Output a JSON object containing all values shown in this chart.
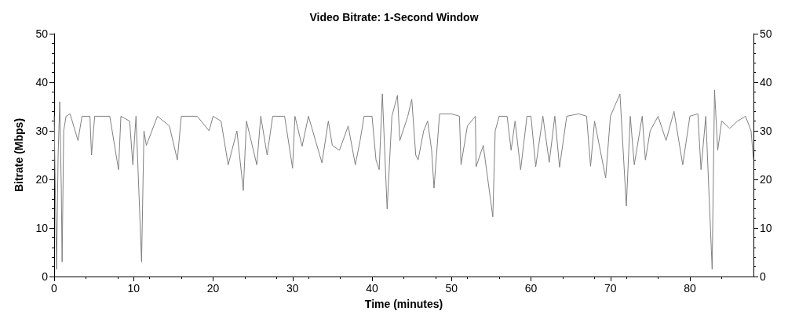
{
  "chart_data": {
    "type": "line",
    "title": "Video Bitrate: 1-Second Window",
    "xlabel": "Time (minutes)",
    "ylabel": "Bitrate (Mbps)",
    "xlim": [
      0,
      88
    ],
    "xticks": [
      0,
      10,
      20,
      30,
      40,
      50,
      60,
      70,
      80
    ],
    "ylim": [
      0,
      50
    ],
    "yticks": [
      0,
      10,
      20,
      30,
      40,
      50
    ],
    "y2lim": [
      0,
      50
    ],
    "y2ticks": [
      0,
      10,
      20,
      30,
      40,
      50
    ],
    "grid": false,
    "marker": "none",
    "line_style": "solid",
    "series": [
      {
        "color": "#808080",
        "x": [
          0,
          0.3,
          0.5,
          0.7,
          0.9,
          1.0,
          1.2,
          1.5,
          2,
          3,
          3.5,
          4.5,
          4.7,
          5.1,
          7,
          8.1,
          8.4,
          9.5,
          9.9,
          10.3,
          11,
          11.3,
          11.6,
          13,
          14.5,
          15.5,
          16,
          17,
          18,
          19.5,
          20,
          21,
          21.9,
          23,
          23.8,
          24.2,
          25.5,
          26,
          26.8,
          27.5,
          29,
          30,
          30.3,
          31.2,
          32,
          33.7,
          34.5,
          35,
          35.9,
          37,
          37.9,
          38.5,
          39,
          40,
          40.5,
          40.9,
          41.3,
          41.9,
          42.5,
          43.2,
          43.5,
          44.5,
          45,
          45.5,
          45.8,
          46.5,
          47,
          47.5,
          47.8,
          48.5,
          50,
          51,
          51.2,
          52,
          53,
          53.1,
          54,
          55.2,
          55.5,
          56,
          57,
          57.5,
          58,
          58.7,
          59.5,
          60,
          60.6,
          61.5,
          62.3,
          63,
          63.6,
          64.5,
          66,
          67,
          67.5,
          68,
          69.4,
          70,
          71.2,
          72,
          72.5,
          73,
          74,
          74.4,
          75,
          76,
          77,
          78,
          79.1,
          80,
          81,
          81.4,
          82,
          82.8,
          83.1,
          83.5,
          84,
          85,
          86,
          87,
          87.7,
          88
        ],
        "values": [
          33,
          1.5,
          25,
          36,
          18,
          3,
          30,
          33,
          33.5,
          28,
          33,
          33,
          25,
          33,
          33,
          22,
          33,
          32,
          23,
          33,
          3,
          30,
          27,
          33,
          31,
          24,
          33,
          33,
          33,
          30,
          33,
          32,
          23,
          30,
          17.7,
          32,
          23,
          33,
          25,
          33,
          33,
          22.3,
          33,
          26.8,
          33,
          23.4,
          32,
          27,
          26,
          31,
          23,
          28,
          33,
          33,
          24,
          22,
          37.6,
          13.9,
          33,
          37.3,
          28,
          33,
          36.5,
          25,
          24,
          30,
          32,
          26,
          18.2,
          33.5,
          33.5,
          33,
          23,
          31,
          33,
          22.6,
          27,
          12.3,
          30,
          33,
          33,
          26,
          32,
          22,
          33,
          33,
          22.6,
          33,
          23.5,
          33,
          22.5,
          33,
          33.5,
          33,
          22.7,
          32,
          20.3,
          33,
          37.6,
          14.5,
          33,
          23,
          33,
          24,
          30,
          33,
          28,
          34,
          23,
          33,
          33.5,
          22,
          33,
          1.5,
          38.4,
          26,
          32,
          30.5,
          32,
          33,
          30,
          24
        ]
      }
    ]
  }
}
